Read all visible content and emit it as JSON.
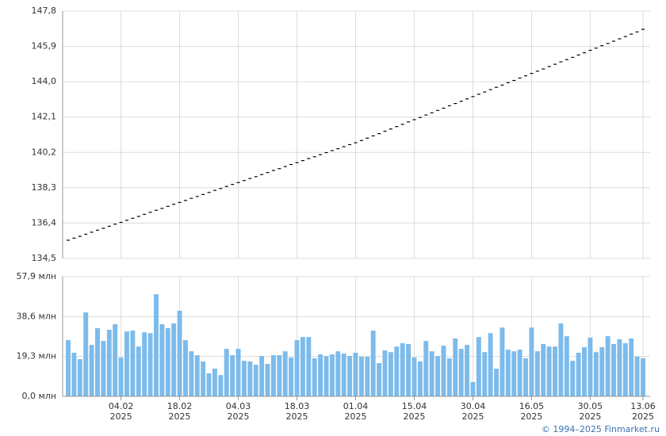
{
  "chart_data": [
    {
      "type": "tick",
      "color": "#000000",
      "grid": true,
      "values": [
        135.48,
        135.59,
        135.69,
        135.8,
        135.91,
        136.02,
        136.12,
        136.23,
        136.34,
        136.44,
        136.55,
        136.66,
        136.76,
        136.87,
        136.98,
        137.09,
        137.19,
        137.3,
        137.41,
        137.51,
        137.62,
        137.73,
        137.83,
        137.94,
        138.05,
        138.16,
        138.26,
        138.37,
        138.48,
        138.58,
        138.69,
        138.8,
        138.9,
        139.01,
        139.12,
        139.23,
        139.33,
        139.44,
        139.55,
        139.65,
        139.76,
        139.87,
        139.97,
        140.08,
        140.19,
        140.3,
        140.4,
        140.51,
        140.62,
        140.72,
        140.84,
        140.97,
        141.09,
        141.21,
        141.34,
        141.46,
        141.59,
        141.71,
        141.84,
        141.96,
        142.08,
        142.21,
        142.33,
        142.46,
        142.58,
        142.71,
        142.83,
        142.95,
        143.08,
        143.2,
        143.33,
        143.45,
        143.58,
        143.7,
        143.82,
        143.95,
        144.07,
        144.2,
        144.32,
        144.45,
        144.57,
        144.69,
        144.82,
        144.94,
        145.07,
        145.19,
        145.31,
        145.44,
        145.56,
        145.69,
        145.81,
        145.94,
        146.06,
        146.18,
        146.31,
        146.43,
        146.56,
        146.68,
        146.82
      ],
      "ylim": [
        134.5,
        147.8
      ],
      "yticks": [
        {
          "value": 134.5,
          "label": "134,5"
        },
        {
          "value": 136.4,
          "label": "136,4"
        },
        {
          "value": 138.3,
          "label": "138,3"
        },
        {
          "value": 140.2,
          "label": "140,2"
        },
        {
          "value": 142.1,
          "label": "142,1"
        },
        {
          "value": 144.0,
          "label": "144,0"
        },
        {
          "value": 145.9,
          "label": "145,9"
        },
        {
          "value": 147.8,
          "label": "147,8"
        }
      ]
    },
    {
      "type": "bar",
      "color": "#7cbbeb",
      "grid": true,
      "categories": [
        null,
        null,
        null,
        null,
        null,
        null,
        null,
        null,
        null,
        "04.02 2025",
        null,
        null,
        null,
        null,
        null,
        null,
        null,
        null,
        null,
        "18.02 2025",
        null,
        null,
        null,
        null,
        null,
        null,
        null,
        null,
        null,
        "04.03 2025",
        null,
        null,
        null,
        null,
        null,
        null,
        null,
        null,
        null,
        "18.03 2025",
        null,
        null,
        null,
        null,
        null,
        null,
        null,
        null,
        null,
        "01.04 2025",
        null,
        null,
        null,
        null,
        null,
        null,
        null,
        null,
        null,
        "15.04 2025",
        null,
        null,
        null,
        null,
        null,
        null,
        null,
        null,
        null,
        "30.04 2025",
        null,
        null,
        null,
        null,
        null,
        null,
        null,
        null,
        null,
        "16.05 2025",
        null,
        null,
        null,
        null,
        null,
        null,
        null,
        null,
        null,
        "30.05 2025",
        null,
        null,
        null,
        null,
        null,
        null,
        null,
        null,
        "13.06 2025"
      ],
      "values": [
        27.2,
        21.1,
        18.0,
        40.6,
        24.9,
        33.0,
        26.8,
        32.2,
        34.9,
        18.8,
        31.4,
        31.8,
        24.1,
        31.0,
        30.6,
        49.4,
        34.9,
        33.0,
        35.3,
        41.4,
        27.2,
        21.8,
        19.9,
        16.9,
        11.1,
        13.4,
        10.3,
        23.0,
        19.9,
        23.0,
        17.2,
        16.9,
        15.3,
        19.5,
        15.7,
        19.9,
        19.9,
        21.8,
        18.8,
        27.2,
        28.7,
        28.7,
        18.4,
        20.3,
        19.5,
        20.3,
        21.8,
        20.7,
        19.5,
        21.1,
        19.2,
        19.2,
        31.8,
        16.1,
        22.2,
        21.4,
        24.1,
        25.7,
        25.3,
        18.8,
        16.9,
        26.8,
        21.8,
        19.5,
        24.5,
        18.4,
        28.0,
        23.0,
        24.9,
        6.9,
        28.7,
        21.4,
        30.6,
        13.4,
        33.3,
        22.6,
        21.8,
        22.6,
        18.4,
        33.3,
        21.8,
        25.3,
        24.1,
        24.1,
        35.3,
        29.1,
        17.2,
        21.1,
        23.8,
        28.4,
        21.4,
        23.8,
        29.1,
        25.3,
        27.6,
        25.7,
        28.0,
        19.2,
        18.4
      ],
      "ylim": [
        0,
        57.9
      ],
      "yticks": [
        {
          "value": 0,
          "label": "0,0 млн"
        },
        {
          "value": 19.3,
          "label": "19,3 млн"
        },
        {
          "value": 38.6,
          "label": "38,6 млн"
        },
        {
          "value": 57.9,
          "label": "57,9 млн"
        }
      ],
      "credit": "© 1994–2025 Finmarket.ru"
    }
  ]
}
